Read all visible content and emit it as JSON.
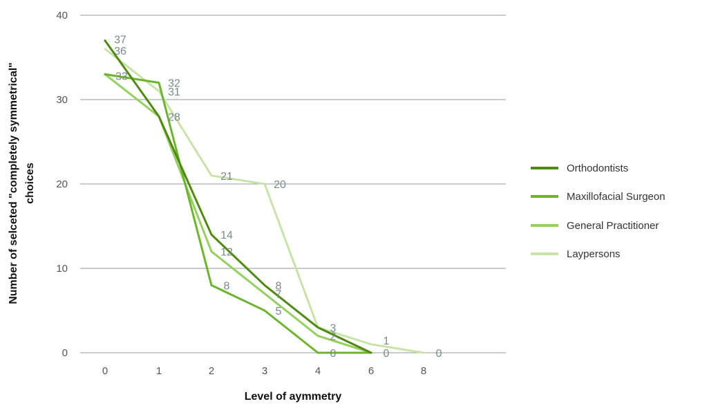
{
  "chart_data": {
    "type": "line",
    "title": "",
    "xlabel": "Level of aymmetry",
    "ylabel_lines": [
      "Number of selceted \"completely symmetrical\"",
      "choices"
    ],
    "x": [
      "0",
      "1",
      "2",
      "3",
      "4",
      "6",
      "8"
    ],
    "ylim": [
      0,
      40
    ],
    "yticks": [
      "0",
      "10",
      "20",
      "30",
      "40"
    ],
    "grid": true,
    "legend_position": "right",
    "series": [
      {
        "name": "Orthodontists",
        "color": "#4f8a10",
        "values": [
          37,
          28,
          14,
          8,
          3,
          0,
          null
        ]
      },
      {
        "name": "Maxillofacial Surgeon",
        "color": "#6cb52b",
        "values": [
          33,
          32,
          8,
          5,
          0,
          0,
          null
        ]
      },
      {
        "name": "General Practitioner",
        "color": "#94d060",
        "values": [
          33,
          28,
          12,
          7,
          2,
          0,
          null
        ]
      },
      {
        "name": "Laypersons",
        "color": "#c8e3a8",
        "values": [
          36,
          31,
          21,
          20,
          3,
          1,
          0
        ]
      }
    ],
    "data_labels": [
      {
        "text": "37",
        "x": 0,
        "y": 37,
        "dx": 22,
        "dy": 4
      },
      {
        "text": "36",
        "x": 0,
        "y": 36,
        "dx": 22,
        "dy": 8
      },
      {
        "text": "33",
        "x": 0,
        "y": 33,
        "dx": 24,
        "dy": 8
      },
      {
        "text": "32",
        "x": 1,
        "y": 32,
        "dx": 22,
        "dy": 6
      },
      {
        "text": "31",
        "x": 1,
        "y": 31,
        "dx": 22,
        "dy": 6
      },
      {
        "text": "28",
        "x": 1,
        "y": 28,
        "dx": 22,
        "dy": 6
      },
      {
        "text": "21",
        "x": 2,
        "y": 21,
        "dx": 22,
        "dy": 6
      },
      {
        "text": "20",
        "x": 3,
        "y": 20,
        "dx": 22,
        "dy": 6
      },
      {
        "text": "14",
        "x": 2,
        "y": 14,
        "dx": 22,
        "dy": 6
      },
      {
        "text": "12",
        "x": 2,
        "y": 12,
        "dx": 22,
        "dy": 6
      },
      {
        "text": "8",
        "x": 2,
        "y": 8,
        "dx": 22,
        "dy": 6
      },
      {
        "text": "8",
        "x": 3,
        "y": 8,
        "dx": 20,
        "dy": 6
      },
      {
        "text": "7",
        "x": 3,
        "y": 7,
        "dx": 20,
        "dy": 6
      },
      {
        "text": "5",
        "x": 3,
        "y": 5,
        "dx": 20,
        "dy": 6
      },
      {
        "text": "3",
        "x": 4,
        "y": 3,
        "dx": 22,
        "dy": 6
      },
      {
        "text": "2",
        "x": 4,
        "y": 2,
        "dx": 22,
        "dy": 6
      },
      {
        "text": "0",
        "x": 4,
        "y": 0,
        "dx": 22,
        "dy": 6
      },
      {
        "text": "1",
        "x": 5,
        "y": 1,
        "dx": 22,
        "dy": 0
      },
      {
        "text": "0",
        "x": 5,
        "y": 0,
        "dx": 22,
        "dy": 6
      },
      {
        "text": "0",
        "x": 6,
        "y": 0,
        "dx": 22,
        "dy": 6
      }
    ]
  }
}
